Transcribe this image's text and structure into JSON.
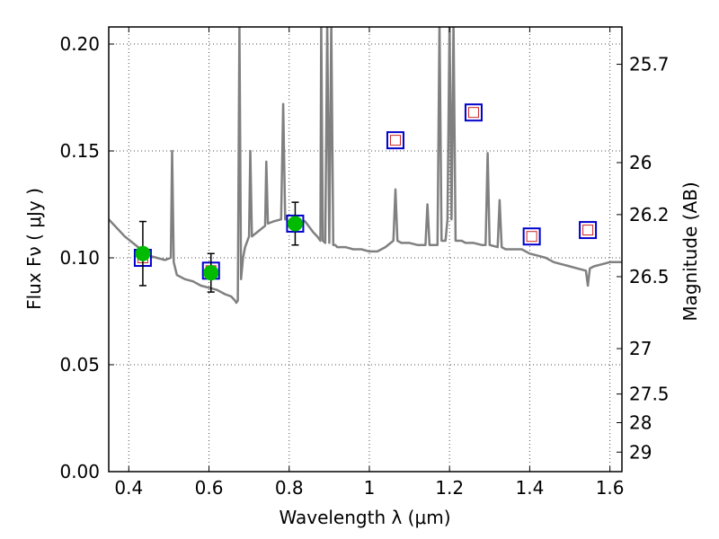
{
  "chart_data": {
    "type": "line",
    "title": "",
    "xlabel": "Wavelength  λ (μm)",
    "ylabel": "Flux  Fν  ( μJy )",
    "y2label": "Magnitude (AB)",
    "xlim": [
      0.35,
      1.63
    ],
    "ylim": [
      0.0,
      0.208
    ],
    "grid": true,
    "x_ticks": [
      {
        "value": 0.4,
        "label": "0.4"
      },
      {
        "value": 0.6,
        "label": "0.6"
      },
      {
        "value": 0.8,
        "label": "0.8"
      },
      {
        "value": 1.0,
        "label": "1"
      },
      {
        "value": 1.2,
        "label": "1.2"
      },
      {
        "value": 1.4,
        "label": "1.4"
      },
      {
        "value": 1.6,
        "label": "1.6"
      }
    ],
    "y_ticks": [
      {
        "value": 0.0,
        "label": "0.00"
      },
      {
        "value": 0.05,
        "label": "0.05"
      },
      {
        "value": 0.1,
        "label": "0.10"
      },
      {
        "value": 0.15,
        "label": "0.15"
      },
      {
        "value": 0.2,
        "label": "0.20"
      }
    ],
    "y2_ticks": [
      {
        "value": 25.7,
        "label": "25.7"
      },
      {
        "value": 26.0,
        "label": "26"
      },
      {
        "value": 26.2,
        "label": "26.2"
      },
      {
        "value": 26.5,
        "label": "26.5"
      },
      {
        "value": 27.0,
        "label": "27"
      },
      {
        "value": 27.5,
        "label": "27.5"
      },
      {
        "value": 28.0,
        "label": "28"
      },
      {
        "value": 29.0,
        "label": "29"
      }
    ],
    "colors": {
      "spectrum": "#808080",
      "observed_points": "#00bb00",
      "model_squares": "#0000cc",
      "model_inner_squares": "#cc2222",
      "errorbars": "#000000"
    },
    "series": [
      {
        "role": "spectrum",
        "x": [
          0.35,
          0.37,
          0.39,
          0.41,
          0.43,
          0.45,
          0.47,
          0.49,
          0.505,
          0.508,
          0.512,
          0.52,
          0.54,
          0.56,
          0.58,
          0.6,
          0.62,
          0.64,
          0.655,
          0.665,
          0.668,
          0.672,
          0.676,
          0.68,
          0.685,
          0.69,
          0.7,
          0.703,
          0.707,
          0.72,
          0.74,
          0.743,
          0.747,
          0.76,
          0.78,
          0.785,
          0.79,
          0.8,
          0.82,
          0.84,
          0.86,
          0.87,
          0.878,
          0.88,
          0.884,
          0.89,
          0.895,
          0.9,
          0.905,
          0.91,
          0.915,
          0.92,
          0.94,
          0.96,
          0.98,
          1.0,
          1.02,
          1.04,
          1.06,
          1.065,
          1.07,
          1.08,
          1.1,
          1.12,
          1.14,
          1.145,
          1.15,
          1.16,
          1.17,
          1.175,
          1.18,
          1.19,
          1.195,
          1.2,
          1.205,
          1.21,
          1.215,
          1.22,
          1.23,
          1.24,
          1.26,
          1.28,
          1.29,
          1.295,
          1.3,
          1.32,
          1.325,
          1.33,
          1.34,
          1.36,
          1.38,
          1.4,
          1.42,
          1.44,
          1.46,
          1.48,
          1.5,
          1.52,
          1.54,
          1.545,
          1.55,
          1.56,
          1.58,
          1.6,
          1.62,
          1.63
        ],
        "values": [
          0.118,
          0.114,
          0.11,
          0.107,
          0.104,
          0.101,
          0.1,
          0.099,
          0.1,
          0.15,
          0.098,
          0.092,
          0.09,
          0.089,
          0.087,
          0.086,
          0.085,
          0.083,
          0.082,
          0.08,
          0.079,
          0.08,
          0.21,
          0.09,
          0.1,
          0.105,
          0.11,
          0.15,
          0.11,
          0.112,
          0.115,
          0.145,
          0.116,
          0.117,
          0.118,
          0.172,
          0.118,
          0.119,
          0.119,
          0.117,
          0.112,
          0.11,
          0.108,
          0.21,
          0.108,
          0.107,
          0.21,
          0.107,
          0.21,
          0.106,
          0.106,
          0.105,
          0.105,
          0.104,
          0.104,
          0.103,
          0.103,
          0.105,
          0.108,
          0.132,
          0.108,
          0.107,
          0.107,
          0.106,
          0.106,
          0.125,
          0.106,
          0.106,
          0.106,
          0.21,
          0.108,
          0.108,
          0.118,
          0.21,
          0.118,
          0.21,
          0.108,
          0.108,
          0.108,
          0.107,
          0.107,
          0.106,
          0.106,
          0.149,
          0.106,
          0.105,
          0.127,
          0.105,
          0.104,
          0.104,
          0.104,
          0.102,
          0.101,
          0.1,
          0.098,
          0.097,
          0.096,
          0.095,
          0.094,
          0.087,
          0.095,
          0.096,
          0.097,
          0.098,
          0.098,
          0.098
        ]
      },
      {
        "role": "observed",
        "x": [
          0.435,
          0.605,
          0.815
        ],
        "values": [
          0.102,
          0.093,
          0.116
        ],
        "yerr": [
          0.015,
          0.009,
          0.01
        ]
      },
      {
        "role": "model",
        "x": [
          0.435,
          0.605,
          0.815,
          1.065,
          1.26,
          1.405,
          1.545
        ],
        "values": [
          0.1,
          0.094,
          0.116,
          0.155,
          0.168,
          0.11,
          0.113
        ]
      }
    ]
  }
}
